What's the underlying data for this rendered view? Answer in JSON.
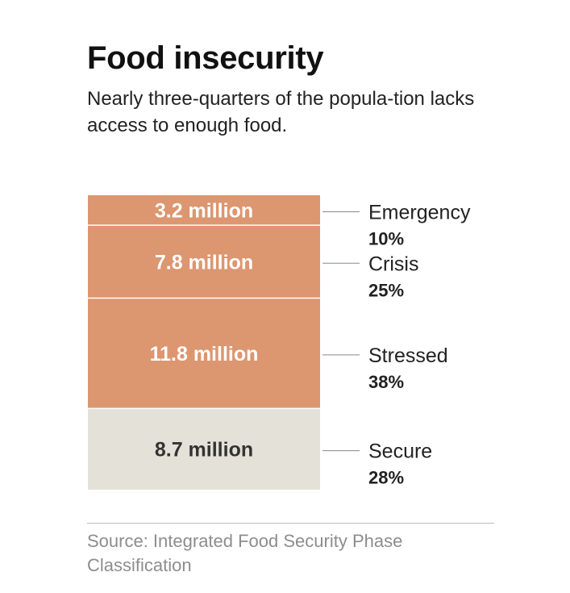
{
  "header": {
    "title": "Food insecurity",
    "subtitle": "Nearly three-quarters of the popula-tion lacks access to enough food."
  },
  "chart_data": {
    "type": "stacked-bar",
    "title": "Food insecurity",
    "unit": "million people",
    "segments": [
      {
        "category": "Emergency",
        "value": 3.2,
        "value_label": "3.2 million",
        "percent_label": "10%",
        "color": "#dc9670",
        "text_color": "#ffffff"
      },
      {
        "category": "Crisis",
        "value": 7.8,
        "value_label": "7.8 million",
        "percent_label": "25%",
        "color": "#dc9670",
        "text_color": "#ffffff"
      },
      {
        "category": "Stressed",
        "value": 11.8,
        "value_label": "11.8 million",
        "percent_label": "38%",
        "color": "#dc9670",
        "text_color": "#ffffff"
      },
      {
        "category": "Secure",
        "value": 8.7,
        "value_label": "8.7 million",
        "percent_label": "28%",
        "color": "#e4e1d8",
        "text_color": "#333333"
      }
    ]
  },
  "footer": {
    "source": "Source: Integrated Food Security Phase Classification"
  }
}
